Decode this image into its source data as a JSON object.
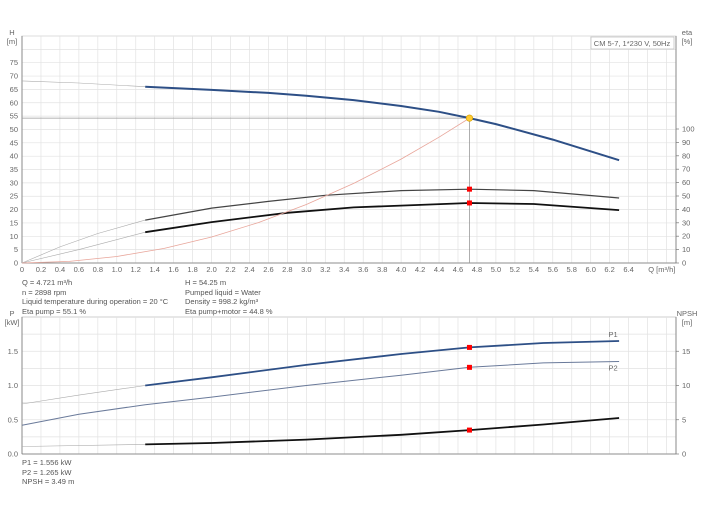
{
  "colors": {
    "head": "#2d4f86",
    "eta": "#444444",
    "eta_total": "#111111",
    "system": "#e8a59a",
    "p1": "#2d4f86",
    "p2": "#6a7a9a",
    "npsh": "#111111",
    "marker": "#ff0000",
    "duty_point": "#ffcc33",
    "grid": "#e2e2e2"
  },
  "chart_data": [
    {
      "type": "line",
      "title": "CM 5-7, 1*230 V, 50Hz",
      "xlabel": "Q [m³/h]",
      "ylabel": "H\n[m]",
      "ylabel_lines": [
        "H",
        "[m]"
      ],
      "y2label_lines": [
        "eta",
        "[%]"
      ],
      "xlim": [
        0,
        6.9
      ],
      "ylim": [
        0,
        85
      ],
      "y2lim": [
        0,
        100
      ],
      "grid": true,
      "xticks": [
        "0",
        "0.2",
        "0.4",
        "0.6",
        "0.8",
        "1.0",
        "1.2",
        "1.4",
        "1.6",
        "1.8",
        "2.0",
        "2.2",
        "2.4",
        "2.6",
        "2.8",
        "3.0",
        "3.2",
        "3.4",
        "3.6",
        "3.8",
        "4.0",
        "4.2",
        "4.4",
        "4.6",
        "4.8",
        "5.0",
        "5.2",
        "5.4",
        "5.6",
        "5.8",
        "6.0",
        "6.2",
        "6.4"
      ],
      "yticks": [
        "0",
        "5",
        "10",
        "15",
        "20",
        "25",
        "30",
        "35",
        "40",
        "45",
        "50",
        "55",
        "60",
        "65",
        "70",
        "75"
      ],
      "y2ticks": [
        "0",
        "10",
        "20",
        "30",
        "40",
        "50",
        "60",
        "70",
        "80",
        "90",
        "100"
      ],
      "duty_point": {
        "q": 4.721,
        "h": 54.25
      },
      "series": [
        {
          "key": "H",
          "axis": "y",
          "points": [
            [
              0,
              68.2
            ],
            [
              0.6,
              67.4
            ],
            [
              1.3,
              66
            ],
            [
              2.0,
              64.8
            ],
            [
              2.6,
              63.7
            ],
            [
              3.0,
              62.6
            ],
            [
              3.5,
              61
            ],
            [
              4.0,
              58.8
            ],
            [
              4.4,
              56.6
            ],
            [
              4.721,
              54.25
            ],
            [
              5.0,
              52
            ],
            [
              5.6,
              46.2
            ],
            [
              6.3,
              38.5
            ]
          ],
          "thin_until": 1.3,
          "marker": null
        },
        {
          "key": "eta_pump",
          "axis": "y2",
          "points": [
            [
              0,
              0
            ],
            [
              0.4,
              12
            ],
            [
              0.8,
              22
            ],
            [
              1.3,
              32
            ],
            [
              2.0,
              41
            ],
            [
              2.6,
              46
            ],
            [
              3.2,
              50.5
            ],
            [
              4.0,
              54
            ],
            [
              4.721,
              55.1
            ],
            [
              5.4,
              54
            ],
            [
              6.3,
              48.5
            ]
          ],
          "thin_until": 1.3,
          "marker": [
            4.721,
            55.1
          ]
        },
        {
          "key": "eta_total",
          "axis": "y2",
          "points": [
            [
              0,
              0
            ],
            [
              0.6,
              10
            ],
            [
              1.3,
              23
            ],
            [
              2.0,
              30.5
            ],
            [
              2.8,
              37.5
            ],
            [
              3.5,
              41.5
            ],
            [
              4.721,
              44.8
            ],
            [
              5.4,
              44
            ],
            [
              6.3,
              39.5
            ]
          ],
          "thin_until": 1.3,
          "marker": [
            4.721,
            44.8
          ]
        },
        {
          "key": "system",
          "axis": "y",
          "points": [
            [
              0,
              0
            ],
            [
              0.5,
              0.61
            ],
            [
              1.0,
              2.43
            ],
            [
              1.5,
              5.48
            ],
            [
              2.0,
              9.74
            ],
            [
              2.5,
              15.2
            ],
            [
              3.0,
              21.9
            ],
            [
              3.5,
              29.8
            ],
            [
              4.0,
              38.9
            ],
            [
              4.4,
              47.1
            ],
            [
              4.721,
              54.25
            ]
          ],
          "thin_until": 4.8,
          "marker": null
        }
      ]
    },
    {
      "type": "line",
      "ylabel_lines": [
        "P",
        "[kW]"
      ],
      "y2label_lines": [
        "NPSH",
        "[m]"
      ],
      "xlim": [
        0,
        6.9
      ],
      "ylim": [
        0,
        2.0
      ],
      "y2lim": [
        0,
        20
      ],
      "grid": true,
      "yticks": [
        "0.0",
        "0.5",
        "1.0",
        "1.5"
      ],
      "y2ticks": [
        "0",
        "5",
        "10",
        "15"
      ],
      "series": [
        {
          "key": "P1",
          "name": "P1",
          "axis": "y",
          "points": [
            [
              0,
              0.73
            ],
            [
              0.6,
              0.86
            ],
            [
              1.3,
              1.0
            ],
            [
              2.0,
              1.12
            ],
            [
              3.0,
              1.3
            ],
            [
              4.0,
              1.46
            ],
            [
              4.721,
              1.556
            ],
            [
              5.5,
              1.62
            ],
            [
              6.3,
              1.65
            ]
          ],
          "thin_until": 1.3,
          "marker": [
            4.721,
            1.556
          ]
        },
        {
          "key": "P2",
          "name": "P2",
          "axis": "y",
          "points": [
            [
              0,
              0.42
            ],
            [
              0.6,
              0.58
            ],
            [
              1.3,
              0.72
            ],
            [
              2.0,
              0.83
            ],
            [
              3.0,
              1.0
            ],
            [
              4.0,
              1.15
            ],
            [
              4.721,
              1.265
            ],
            [
              5.5,
              1.33
            ],
            [
              6.3,
              1.35
            ]
          ],
          "thin_until": 0,
          "marker": [
            4.721,
            1.265
          ]
        },
        {
          "key": "NPSH",
          "axis": "y2",
          "points": [
            [
              0,
              1.1
            ],
            [
              1.3,
              1.4
            ],
            [
              2.0,
              1.6
            ],
            [
              3.0,
              2.1
            ],
            [
              4.0,
              2.8
            ],
            [
              4.721,
              3.49
            ],
            [
              5.5,
              4.3
            ],
            [
              6.3,
              5.25
            ]
          ],
          "thin_until": 1.3,
          "marker": [
            4.721,
            3.49
          ]
        }
      ]
    }
  ],
  "info_top_left": [
    "Q = 4.721 m³/h",
    "n = 2898 rpm",
    "Liquid temperature during operation = 20 °C",
    "Eta pump = 55.1 %"
  ],
  "info_top_right": [
    "H = 54.25 m",
    "Pumped liquid = Water",
    "Density = 998.2 kg/m³",
    "Eta pump+motor = 44.8 %"
  ],
  "info_bottom": [
    "P1 = 1.556 kW",
    "P2 = 1.265 kW",
    "NPSH = 3.49 m"
  ]
}
